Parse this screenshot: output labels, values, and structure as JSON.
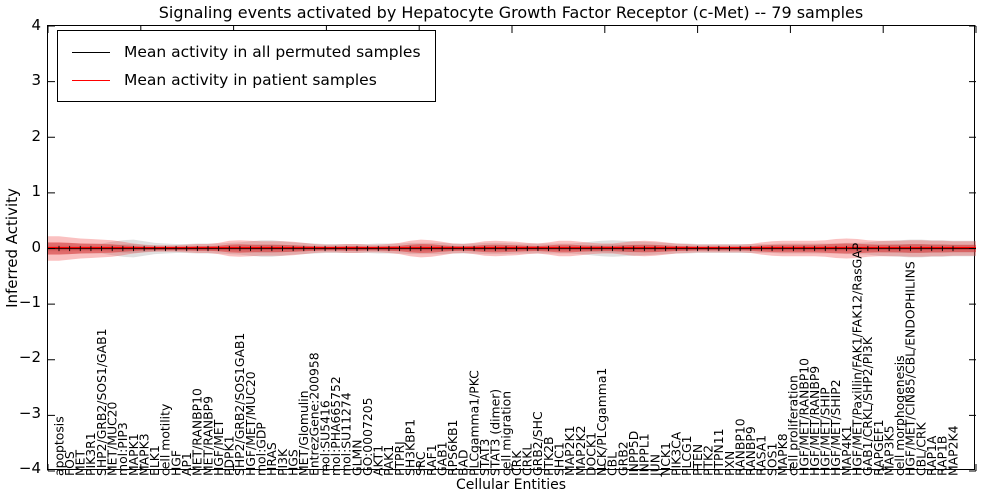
{
  "chart_data": {
    "type": "line",
    "title": "Signaling events activated by Hepatocyte Growth Factor Receptor (c-Met) -- 79 samples",
    "xlabel": "Cellular Entities",
    "ylabel": "Inferred Activity",
    "ylim": [
      -4,
      4
    ],
    "yticks": [
      "4",
      "3",
      "2",
      "1",
      "0",
      "−1",
      "−2",
      "−3",
      "−4"
    ],
    "grid": false,
    "legend_position": "upper left",
    "categories": [
      "apoptosis",
      "FOS",
      "MET",
      "PIK3R1",
      "SHP2/GRB2/SOS1/GAB1",
      "MET/MUC20",
      "mol:PIP3",
      "MAPK1",
      "MAPK3",
      "ELK1",
      "cell motility",
      "HGF",
      "AP1",
      "MET/RANBP10",
      "MET/RANBP9",
      "HGF/MET",
      "PDPK1",
      "SHP2/GRB2/SOS1GAB1",
      "HGF/MET/MUC20",
      "mol:GDP",
      "HRAS",
      "PI3K",
      "HGS",
      "MET/Glomulin",
      "EntrezGene:200958",
      "mol:SU5416",
      "mol:PHA665752",
      "mol:SU11274",
      "GLMN",
      "GO:0007205",
      "AKT1",
      "PAK1",
      "PTPRJ",
      "SH3KBP1",
      "SRC",
      "RAF1",
      "GAB1",
      "RPS6KB1",
      "BAD",
      "PLCgamma1/PKC",
      "STAT3",
      "STAT3 (dimer)",
      "cell migration",
      "CRK",
      "CRKL",
      "GRB2/SHC",
      "PTK2B",
      "SHC1",
      "MAP2K1",
      "MAP2K2",
      "DOCK1",
      "NCK/PLCgamma1",
      "CBL",
      "GRB2",
      "INPP5D",
      "INPPL1",
      "JUN",
      "NCK1",
      "PIK3CA",
      "PLCG1",
      "PTEN",
      "PTK2",
      "PTPN11",
      "PXN",
      "RANBP10",
      "RANBP9",
      "RASA1",
      "SOS1",
      "MAPK8",
      "cell proliferation",
      "HGF/MET/RANBP10",
      "HGF/MET/RANBP9",
      "HGF/MET/SHIP",
      "HGF/MET/SHIP2",
      "MAP4K1",
      "HGF/MET/Paxillin/FAK1/FAK12/RasGAP",
      "GAB1/CRKL/SHP2/PI3K",
      "RAPGEF1",
      "MAP3K5",
      "cell morphogenesis",
      "HGF/MET/CIN85/CBL/ENDOPHILINS",
      "CBL/CRK",
      "RAP1A",
      "RAP1B",
      "MAP2K4"
    ],
    "series": [
      {
        "name": "Mean activity in all permuted samples",
        "color": "#000000",
        "band_color": "#a0a0a0",
        "mean": 0.0,
        "band_halfwidth": [
          0.1,
          0.1,
          0.09,
          0.09,
          0.09,
          0.12,
          0.15,
          0.16,
          0.13,
          0.1,
          0.09,
          0.08,
          0.08,
          0.09,
          0.09,
          0.09,
          0.1,
          0.11,
          0.13,
          0.15,
          0.15,
          0.13,
          0.11,
          0.1,
          0.09,
          0.08,
          0.08,
          0.08,
          0.08,
          0.08,
          0.09,
          0.09,
          0.09,
          0.1,
          0.1,
          0.1,
          0.1,
          0.09,
          0.09,
          0.09,
          0.1,
          0.1,
          0.1,
          0.09,
          0.09,
          0.09,
          0.09,
          0.09,
          0.09,
          0.1,
          0.12,
          0.14,
          0.15,
          0.14,
          0.13,
          0.12,
          0.11,
          0.1,
          0.09,
          0.09,
          0.08,
          0.08,
          0.08,
          0.08,
          0.08,
          0.08,
          0.08,
          0.08,
          0.09,
          0.09,
          0.09,
          0.09,
          0.09,
          0.09,
          0.1,
          0.1,
          0.11,
          0.13,
          0.14,
          0.15,
          0.16,
          0.16,
          0.15,
          0.15,
          0.14
        ]
      },
      {
        "name": "Mean activity in patient samples",
        "color": "#ff0000",
        "band_color": "#ee3333",
        "mean": 0.0,
        "band_halfwidth": [
          0.22,
          0.2,
          0.18,
          0.17,
          0.16,
          0.15,
          0.12,
          0.09,
          0.07,
          0.06,
          0.06,
          0.06,
          0.07,
          0.08,
          0.08,
          0.1,
          0.14,
          0.15,
          0.14,
          0.13,
          0.13,
          0.13,
          0.12,
          0.1,
          0.08,
          0.07,
          0.07,
          0.08,
          0.08,
          0.07,
          0.07,
          0.08,
          0.1,
          0.14,
          0.16,
          0.15,
          0.12,
          0.09,
          0.08,
          0.1,
          0.13,
          0.14,
          0.13,
          0.12,
          0.1,
          0.09,
          0.11,
          0.14,
          0.14,
          0.12,
          0.1,
          0.09,
          0.09,
          0.11,
          0.13,
          0.14,
          0.13,
          0.11,
          0.09,
          0.08,
          0.07,
          0.07,
          0.07,
          0.07,
          0.07,
          0.08,
          0.11,
          0.13,
          0.14,
          0.14,
          0.14,
          0.14,
          0.15,
          0.17,
          0.18,
          0.17,
          0.15,
          0.14,
          0.14,
          0.14,
          0.15,
          0.15,
          0.14,
          0.14,
          0.13
        ]
      }
    ]
  },
  "colors": {
    "background": "#ffffff",
    "axis": "#000000",
    "permuted_line": "#000000",
    "patient_line": "#ff0000"
  }
}
